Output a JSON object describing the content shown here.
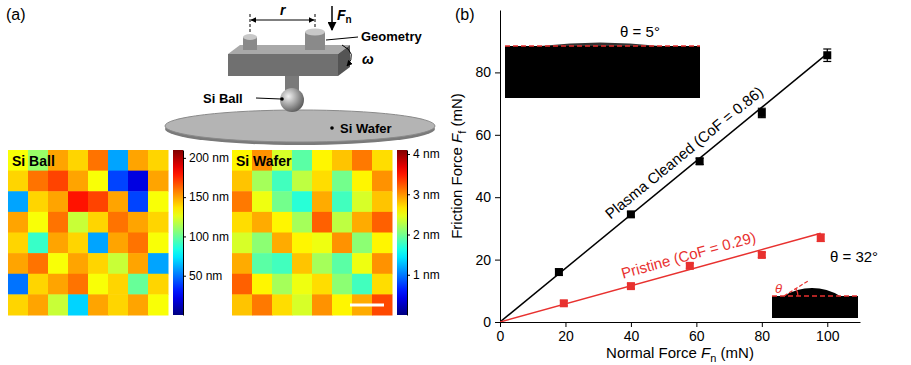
{
  "panel_a": {
    "label": "(a)",
    "schematic": {
      "r": "r",
      "force": "F",
      "force_subscript": "n",
      "geometry": "Geometry",
      "omega": "ω",
      "ball": "Si Ball",
      "wafer": "Si Wafer"
    },
    "heatmaps": [
      {
        "title": "Si Ball",
        "cells": [
          [
            130,
            110,
            150,
            140,
            160,
            60,
            150,
            140
          ],
          [
            140,
            160,
            170,
            150,
            130,
            40,
            20,
            150
          ],
          [
            60,
            140,
            150,
            180,
            170,
            150,
            40,
            130
          ],
          [
            150,
            130,
            160,
            120,
            140,
            160,
            150,
            140
          ],
          [
            140,
            90,
            150,
            140,
            60,
            150,
            160,
            130
          ],
          [
            150,
            160,
            130,
            150,
            140,
            120,
            150,
            60
          ],
          [
            50,
            140,
            150,
            160,
            130,
            140,
            100,
            140
          ],
          [
            140,
            150,
            120,
            70,
            150,
            140,
            150,
            130
          ]
        ],
        "colorbar": {
          "range": [
            0,
            210
          ],
          "ticks": [
            {
              "value": 200,
              "label": "200 nm"
            },
            {
              "value": 150,
              "label": "150 nm"
            },
            {
              "value": 100,
              "label": "100 nm"
            },
            {
              "value": 50,
              "label": "50 nm"
            }
          ]
        }
      },
      {
        "title": "Si Wafer",
        "cells": [
          [
            2.6,
            3.0,
            2.4,
            1.9,
            2.6,
            2.8,
            3.1,
            2.7
          ],
          [
            2.8,
            2.2,
            1.8,
            2.3,
            2.7,
            2.0,
            2.6,
            3.0
          ],
          [
            3.1,
            2.5,
            2.0,
            1.7,
            2.9,
            1.8,
            2.4,
            2.8
          ],
          [
            2.7,
            2.9,
            2.6,
            2.2,
            3.2,
            2.3,
            2.9,
            3.2
          ],
          [
            2.4,
            2.1,
            2.9,
            2.6,
            2.5,
            3.0,
            2.1,
            2.6
          ],
          [
            2.9,
            1.9,
            1.8,
            2.8,
            2.2,
            1.9,
            2.5,
            3.0
          ],
          [
            3.2,
            2.6,
            2.2,
            2.5,
            2.7,
            2.1,
            1.8,
            2.7
          ],
          [
            2.8,
            3.1,
            2.7,
            2.4,
            3.0,
            2.6,
            2.9,
            3.3
          ]
        ],
        "colorbar": {
          "range": [
            0,
            4.1
          ],
          "ticks": [
            {
              "value": 4,
              "label": "4 nm"
            },
            {
              "value": 3,
              "label": "3 nm"
            },
            {
              "value": 2,
              "label": "2 nm"
            },
            {
              "value": 1,
              "label": "1 nm"
            }
          ]
        }
      }
    ]
  },
  "chart_data": {
    "type": "scatter",
    "label": "(b)",
    "xlabel": {
      "prefix": "Normal Force ",
      "symbol": "F",
      "subscript": "n",
      "suffix": " (mN)"
    },
    "ylabel": {
      "prefix": "Friction Force ",
      "symbol": "F",
      "subscript": "f",
      "suffix": " (mN)"
    },
    "xlim": [
      0,
      110
    ],
    "xticks": [
      0,
      20,
      40,
      60,
      80,
      100
    ],
    "ylim": [
      0,
      100
    ],
    "yticks": [
      0,
      20,
      40,
      60,
      80
    ],
    "series": [
      {
        "name": "Plasma Cleaned (CoF = 0.86)",
        "color": "#000000",
        "marker": "square",
        "fit_slope": 0.86,
        "x": [
          18,
          40,
          61,
          80,
          100
        ],
        "values": [
          16,
          34.5,
          51.5,
          67,
          85.5
        ],
        "errors": [
          1,
          0.8,
          1,
          1.5,
          2
        ]
      },
      {
        "name": "Pristine (CoF = 0.29)",
        "color": "#e8312f",
        "marker": "square",
        "fit_slope": 0.29,
        "x": [
          19.5,
          40,
          58,
          80,
          98
        ],
        "values": [
          6,
          11.5,
          18,
          21.5,
          27
        ],
        "errors": [
          0.8,
          0.8,
          0.8,
          0.8,
          1.2
        ]
      }
    ],
    "insets": [
      {
        "text": "θ = 5°"
      },
      {
        "text": "θ = 32°",
        "angle_symbol": "θ"
      }
    ]
  }
}
